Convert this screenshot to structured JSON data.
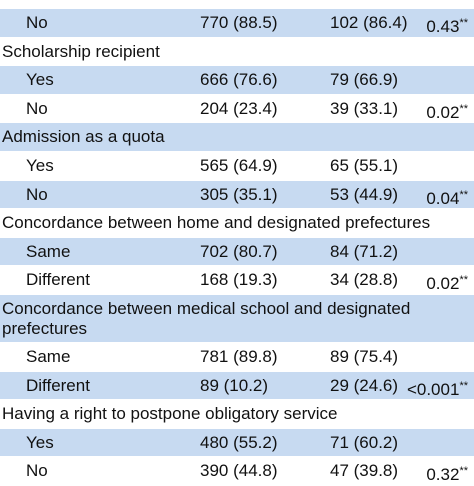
{
  "table": {
    "rows": [
      {
        "label": "No",
        "n1": "770 (88.5)",
        "n2": "102 (86.4)",
        "p": "0.43",
        "sig": "**"
      },
      {
        "label": "Scholarship recipient"
      },
      {
        "label": "Yes",
        "n1": "666 (76.6)",
        "n2": "79 (66.9)"
      },
      {
        "label": "No",
        "n1": "204 (23.4)",
        "n2": "39 (33.1)",
        "p": "0.02",
        "sig": "**"
      },
      {
        "label": "Admission as a quota"
      },
      {
        "label": "Yes",
        "n1": "565 (64.9)",
        "n2": "65 (55.1)"
      },
      {
        "label": "No",
        "n1": "305 (35.1)",
        "n2": "53 (44.9)",
        "p": "0.04",
        "sig": "**"
      },
      {
        "label": "Concordance between home and designated prefectures"
      },
      {
        "label": "Same",
        "n1": "702 (80.7)",
        "n2": "84 (71.2)"
      },
      {
        "label": "Different",
        "n1": "168 (19.3)",
        "n2": "34 (28.8)",
        "p": "0.02",
        "sig": "**"
      },
      {
        "label": "Concordance between medical school and designated prefectures"
      },
      {
        "label": "Same",
        "n1": "781 (89.8)",
        "n2": "89 (75.4)"
      },
      {
        "label": "Different",
        "n1": "89 (10.2)",
        "n2": "29 (24.6)",
        "p": "<0.001",
        "sig": "**"
      },
      {
        "label": "Having a right to postpone obligatory service"
      },
      {
        "label": "Yes",
        "n1": "480 (55.2)",
        "n2": "71 (60.2)"
      },
      {
        "label": "No",
        "n1": "390 (44.8)",
        "n2": "47 (39.8)",
        "p": "0.32",
        "sig": "**"
      }
    ]
  }
}
